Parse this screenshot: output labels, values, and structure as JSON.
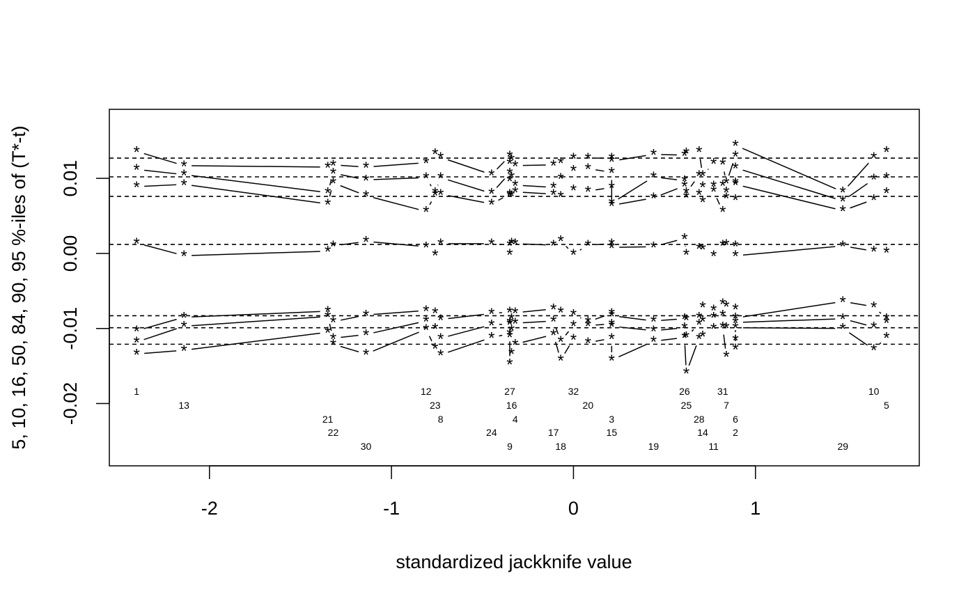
{
  "chart_data": {
    "type": "scatter",
    "title": "",
    "xlabel": "standardized jackknife value",
    "ylabel": "5, 10, 16, 50, 84, 90, 95 %-iles of (T*-t)",
    "xlim": [
      -2.55,
      1.9
    ],
    "ylim": [
      -0.0283,
      0.0192
    ],
    "x_ticks": [
      -2,
      -1,
      0,
      1
    ],
    "x_tick_labels": [
      "-2",
      "-1",
      "0",
      "1"
    ],
    "y_ticks": [
      -0.02,
      -0.01,
      0.0,
      0.01
    ],
    "y_tick_labels": [
      "-0.02",
      "-0.01",
      "0.00",
      "0.01"
    ],
    "grid": false,
    "marker": "*",
    "reference_lines": [
      0.0127,
      0.0102,
      0.0076,
      0.0012,
      -0.0083,
      -0.0099,
      -0.0121
    ],
    "percentiles": [
      "5",
      "10",
      "16",
      "50",
      "84",
      "90",
      "95"
    ],
    "observations": [
      {
        "id": "1",
        "x": -2.4,
        "q": [
          -0.0134,
          -0.0118,
          -0.0103,
          0.0014,
          0.0089,
          0.0112,
          0.0136
        ],
        "label_row": 0
      },
      {
        "id": "13",
        "x": -2.14,
        "q": [
          -0.0129,
          -0.0097,
          -0.0085,
          -0.0003,
          0.0092,
          0.0105,
          0.0117
        ],
        "label_row": 1
      },
      {
        "id": "21",
        "x": -1.35,
        "q": [
          -0.0105,
          -0.0084,
          -0.0077,
          0.0003,
          0.0066,
          0.0081,
          0.0115
        ],
        "label_row": 2
      },
      {
        "id": "22",
        "x": -1.32,
        "q": [
          -0.0121,
          -0.0113,
          -0.0091,
          0.001,
          0.0094,
          0.0107,
          0.0118
        ],
        "label_row": 3
      },
      {
        "id": "30",
        "x": -1.14,
        "q": [
          -0.0134,
          -0.0108,
          -0.0082,
          0.0016,
          0.0077,
          0.0098,
          0.0115
        ],
        "label_row": 4
      },
      {
        "id": "12",
        "x": -0.81,
        "q": [
          -0.0101,
          -0.009,
          -0.0076,
          0.0009,
          0.0056,
          0.0101,
          0.0121
        ],
        "label_row": 0
      },
      {
        "id": "23",
        "x": -0.76,
        "q": [
          -0.0126,
          -0.01,
          -0.0079,
          -0.0002,
          0.0078,
          0.0081,
          0.0133
        ],
        "label_row": 1
      },
      {
        "id": "8",
        "x": -0.73,
        "q": [
          -0.0135,
          -0.0113,
          -0.0088,
          0.0013,
          0.0079,
          0.0101,
          0.0128
        ],
        "label_row": 2
      },
      {
        "id": "24",
        "x": -0.45,
        "q": [
          -0.0112,
          -0.0095,
          -0.008,
          0.0013,
          0.0066,
          0.008,
          0.0105
        ],
        "label_row": 3
      },
      {
        "id": "27",
        "x": -0.35,
        "q": [
          -0.0107,
          -0.0094,
          -0.0078,
          0.0011,
          0.0079,
          0.0107,
          0.013
        ],
        "label_row": 0
      },
      {
        "id": "16",
        "x": -0.34,
        "q": [
          -0.0133,
          -0.0102,
          -0.0087,
          0.0014,
          0.0077,
          0.0102,
          0.0125
        ],
        "label_row": 1
      },
      {
        "id": "4",
        "x": -0.32,
        "q": [
          -0.0121,
          -0.0093,
          -0.0079,
          0.0013,
          0.0082,
          0.0091,
          0.0117
        ],
        "label_row": 2
      },
      {
        "id": "9",
        "x": -0.35,
        "q": [
          -0.0147,
          -0.0111,
          -0.0092,
          -0.0001,
          0.0077,
          0.0097,
          0.012
        ],
        "label_row": 4
      },
      {
        "id": "17",
        "x": -0.11,
        "q": [
          -0.0108,
          -0.009,
          -0.0074,
          0.0011,
          0.0079,
          0.0088,
          0.0118
        ],
        "label_row": 3
      },
      {
        "id": "18",
        "x": -0.07,
        "q": [
          -0.0142,
          -0.0117,
          -0.0078,
          0.0017,
          0.0076,
          0.01,
          0.0121
        ],
        "label_row": 4
      },
      {
        "id": "32",
        "x": 0.0,
        "q": [
          -0.0114,
          -0.0096,
          -0.0081,
          -0.0001,
          0.0085,
          0.0111,
          0.0127
        ],
        "label_row": 0
      },
      {
        "id": "20",
        "x": 0.08,
        "q": [
          -0.0119,
          -0.0096,
          -0.0091,
          0.0011,
          0.0083,
          0.0113,
          0.0127
        ],
        "label_row": 1
      },
      {
        "id": "3",
        "x": 0.21,
        "q": [
          -0.0113,
          -0.0094,
          -0.008,
          0.0013,
          0.0088,
          0.0108,
          0.0127
        ],
        "label_row": 2
      },
      {
        "id": "15",
        "x": 0.21,
        "q": [
          -0.0142,
          -0.0097,
          -0.0083,
          0.0008,
          0.0064,
          0.0067,
          0.0123
        ],
        "label_row": 3
      },
      {
        "id": "19",
        "x": 0.44,
        "q": [
          -0.0117,
          -0.0103,
          -0.009,
          0.0009,
          0.0074,
          0.0102,
          0.0132
        ],
        "label_row": 4
      },
      {
        "id": "26",
        "x": 0.61,
        "q": [
          -0.0112,
          -0.0099,
          -0.0087,
          0.002,
          0.009,
          0.0097,
          0.0131
        ],
        "label_row": 0
      },
      {
        "id": "25",
        "x": 0.62,
        "q": [
          -0.0159,
          -0.0111,
          -0.0088,
          -0.0001,
          0.0075,
          0.0081,
          0.0134
        ],
        "label_row": 1
      },
      {
        "id": "28",
        "x": 0.69,
        "q": [
          -0.0113,
          -0.0094,
          -0.0085,
          0.0007,
          0.0079,
          0.0104,
          0.0136
        ],
        "label_row": 2
      },
      {
        "id": "14",
        "x": 0.71,
        "q": [
          -0.011,
          -0.009,
          -0.0071,
          0.0006,
          0.0069,
          0.0089,
          0.0104
        ],
        "label_row": 3
      },
      {
        "id": "11",
        "x": 0.77,
        "q": [
          -0.01,
          -0.0085,
          -0.0075,
          -0.0003,
          0.0083,
          0.009,
          0.012
        ],
        "label_row": 4
      },
      {
        "id": "31",
        "x": 0.82,
        "q": [
          -0.0098,
          -0.0082,
          -0.0067,
          0.0011,
          0.0056,
          0.0091,
          0.0119
        ],
        "label_row": 0
      },
      {
        "id": "7",
        "x": 0.84,
        "q": [
          -0.0137,
          -0.0099,
          -0.007,
          0.0012,
          0.0074,
          0.0082,
          0.0094
        ],
        "label_row": 1
      },
      {
        "id": "6",
        "x": 0.89,
        "q": [
          -0.0127,
          -0.0115,
          -0.0074,
          0.001,
          0.0072,
          0.0094,
          0.013
        ],
        "label_row": 2
      },
      {
        "id": "2",
        "x": 0.89,
        "q": [
          -0.0099,
          -0.0092,
          -0.0086,
          -0.0003,
          0.0092,
          0.0114,
          0.0144
        ],
        "label_row": 3
      },
      {
        "id": "29",
        "x": 1.48,
        "q": [
          -0.01,
          -0.0087,
          -0.0064,
          0.001,
          0.0057,
          0.007,
          0.0082
        ],
        "label_row": 4
      },
      {
        "id": "10",
        "x": 1.65,
        "q": [
          -0.0128,
          -0.0098,
          -0.0071,
          0.0003,
          0.0072,
          0.0099,
          0.0128
        ],
        "label_row": 0
      },
      {
        "id": "5",
        "x": 1.72,
        "q": [
          -0.0112,
          -0.0092,
          -0.0087,
          0.0002,
          0.0081,
          0.0101,
          0.0136
        ],
        "label_row": 1
      }
    ]
  }
}
